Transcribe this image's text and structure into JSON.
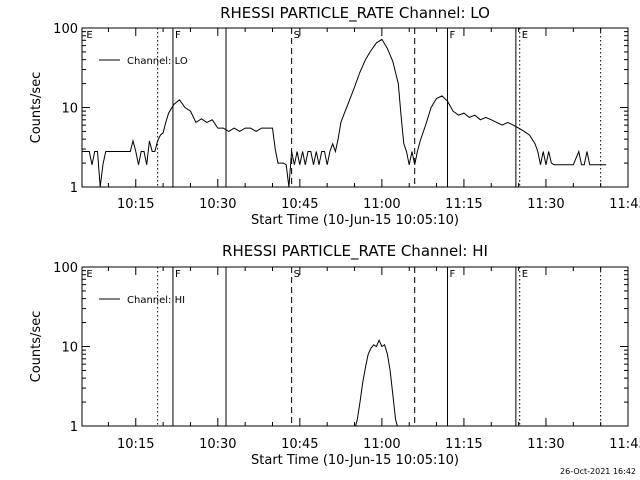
{
  "chart_data": [
    {
      "type": "line",
      "title": "RHESSI PARTICLE_RATE Channel: LO",
      "xlabel": "Start Time (10-Jun-15 10:05:10)",
      "ylabel": "Counts/sec",
      "x_unit": "minutes after 10:00",
      "x_tick_labels": [
        "10:15",
        "10:30",
        "10:45",
        "11:00",
        "11:15",
        "11:30",
        "11:45"
      ],
      "x_ticks": [
        15,
        30,
        45,
        60,
        75,
        90,
        105
      ],
      "xlim": [
        5.17,
        105
      ],
      "y_scale": "log",
      "y_tick_labels": [
        "1",
        "10",
        "100"
      ],
      "y_ticks": [
        1,
        10,
        100
      ],
      "ylim": [
        1,
        100
      ],
      "grid": false,
      "legend_position": "top-left",
      "series": [
        {
          "name": "Channel: LO",
          "x": [
            5.2,
            6.5,
            7.0,
            7.5,
            8.0,
            8.5,
            9.0,
            9.5,
            10.0,
            11.0,
            12.0,
            13.0,
            13.5,
            14.0,
            14.5,
            15.0,
            15.5,
            16.0,
            16.5,
            17.0,
            17.5,
            18.0,
            18.5,
            19.0,
            19.5,
            20.0,
            20.5,
            21.0,
            22.0,
            23.0,
            24.0,
            25.0,
            26.0,
            27.0,
            28.0,
            29.0,
            30.0,
            31.0,
            32.0,
            33.0,
            34.0,
            35.0,
            36.0,
            37.0,
            38.0,
            39.0,
            40.0,
            40.5,
            41.0,
            41.5,
            42.0,
            42.5,
            43.0,
            43.5,
            44.0,
            44.5,
            45.0,
            45.5,
            46.0,
            46.5,
            47.0,
            47.5,
            48.0,
            48.5,
            49.0,
            49.5,
            50.0,
            50.5,
            51.0,
            51.5,
            52.0,
            52.5,
            53.0,
            54.0,
            55.0,
            56.0,
            57.0,
            58.0,
            59.0,
            60.0,
            61.0,
            62.0,
            63.0,
            63.5,
            64.0,
            64.5,
            65.0,
            65.5,
            66.0,
            66.5,
            67.0,
            68.0,
            69.0,
            70.0,
            71.0,
            72.0,
            73.0,
            74.0,
            75.0,
            76.0,
            77.0,
            78.0,
            79.0,
            80.0,
            81.0,
            82.0,
            83.0,
            84.0,
            85.0,
            86.0,
            87.0,
            88.0,
            88.5,
            89.0,
            89.5,
            90.0,
            90.5,
            91.0,
            91.5,
            92.0,
            92.5,
            93.0,
            94.0,
            95.0,
            96.0,
            96.5,
            97.0,
            97.5,
            98.0,
            98.5,
            99.0,
            100.0,
            101.0
          ],
          "y": [
            2.8,
            2.8,
            1.9,
            2.8,
            2.8,
            1.0,
            1.9,
            2.8,
            2.8,
            2.8,
            2.8,
            2.8,
            2.8,
            2.8,
            3.8,
            2.8,
            1.9,
            2.8,
            2.8,
            1.9,
            3.8,
            2.8,
            2.8,
            3.8,
            4.5,
            4.8,
            6.5,
            8.5,
            11.0,
            12.5,
            10.0,
            9.0,
            6.5,
            7.2,
            6.5,
            7.0,
            5.5,
            5.5,
            5.0,
            5.5,
            5.0,
            5.5,
            5.5,
            5.0,
            5.5,
            5.5,
            5.5,
            3.0,
            2.0,
            2.0,
            2.0,
            1.9,
            1.0,
            2.8,
            1.9,
            2.8,
            1.9,
            2.8,
            1.9,
            2.8,
            2.8,
            1.9,
            2.8,
            1.9,
            2.8,
            2.8,
            1.9,
            2.8,
            3.5,
            2.8,
            4.0,
            6.5,
            8.0,
            12.0,
            18.0,
            28.0,
            40.0,
            52.0,
            65.0,
            72.0,
            55.0,
            38.0,
            20.0,
            8.0,
            3.5,
            2.8,
            1.9,
            2.8,
            1.9,
            2.8,
            3.8,
            6.0,
            10.0,
            13.0,
            14.0,
            12.0,
            9.0,
            8.0,
            8.5,
            7.5,
            8.0,
            7.0,
            7.5,
            7.0,
            6.5,
            6.0,
            6.5,
            6.0,
            5.5,
            5.0,
            4.5,
            3.5,
            2.8,
            1.9,
            2.8,
            1.9,
            2.8,
            2.0,
            1.9,
            1.9,
            1.9,
            1.9,
            1.9,
            1.9,
            2.8,
            1.9,
            1.9,
            2.8,
            1.9,
            1.9,
            1.9,
            1.9,
            1.9
          ]
        }
      ],
      "markers": [
        {
          "x": 5.6,
          "style": "none",
          "label": "E"
        },
        {
          "x": 19.0,
          "style": "dotted",
          "label": ""
        },
        {
          "x": 21.8,
          "style": "solid",
          "label": "F"
        },
        {
          "x": 31.5,
          "style": "solid",
          "label": ""
        },
        {
          "x": 43.5,
          "style": "dashed",
          "label": "S"
        },
        {
          "x": 66.0,
          "style": "dashed",
          "label": ""
        },
        {
          "x": 72.0,
          "style": "solid",
          "label": "F"
        },
        {
          "x": 84.5,
          "style": "solid",
          "label": ""
        },
        {
          "x": 85.2,
          "style": "dotted",
          "label": "E"
        },
        {
          "x": 100.0,
          "style": "dotted",
          "label": ""
        }
      ]
    },
    {
      "type": "line",
      "title": "RHESSI PARTICLE_RATE Channel: HI",
      "xlabel": "Start Time (10-Jun-15 10:05:10)",
      "ylabel": "Counts/sec",
      "x_unit": "minutes after 10:00",
      "x_tick_labels": [
        "10:15",
        "10:30",
        "10:45",
        "11:00",
        "11:15",
        "11:30",
        "11:45"
      ],
      "x_ticks": [
        15,
        30,
        45,
        60,
        75,
        90,
        105
      ],
      "xlim": [
        5.17,
        105
      ],
      "y_scale": "log",
      "y_tick_labels": [
        "1",
        "10",
        "100"
      ],
      "y_ticks": [
        1,
        10,
        100
      ],
      "ylim": [
        1,
        100
      ],
      "grid": false,
      "legend_position": "top-left",
      "series": [
        {
          "name": "Channel: HI",
          "x": [
            55.0,
            55.5,
            56.0,
            56.5,
            57.0,
            57.5,
            58.0,
            58.5,
            59.0,
            59.5,
            60.0,
            60.5,
            61.0,
            61.5,
            62.0,
            62.5,
            63.0
          ],
          "y": [
            0.9,
            1.2,
            2.0,
            3.5,
            5.5,
            8.0,
            9.5,
            10.5,
            10.0,
            12.0,
            10.0,
            10.5,
            8.0,
            5.0,
            2.5,
            1.2,
            0.9
          ]
        }
      ],
      "markers": [
        {
          "x": 5.6,
          "style": "none",
          "label": "E"
        },
        {
          "x": 19.0,
          "style": "dotted",
          "label": ""
        },
        {
          "x": 21.8,
          "style": "solid",
          "label": "F"
        },
        {
          "x": 31.5,
          "style": "solid",
          "label": ""
        },
        {
          "x": 43.5,
          "style": "dashed",
          "label": "S"
        },
        {
          "x": 66.0,
          "style": "dashed",
          "label": ""
        },
        {
          "x": 72.0,
          "style": "solid",
          "label": "F"
        },
        {
          "x": 84.5,
          "style": "solid",
          "label": ""
        },
        {
          "x": 85.2,
          "style": "dotted",
          "label": "E"
        },
        {
          "x": 100.0,
          "style": "dotted",
          "label": ""
        }
      ]
    }
  ],
  "footer": {
    "timestamp": "26-Oct-2021 16:42"
  },
  "colors": {
    "background": "#ffffff",
    "foreground": "#000000"
  }
}
